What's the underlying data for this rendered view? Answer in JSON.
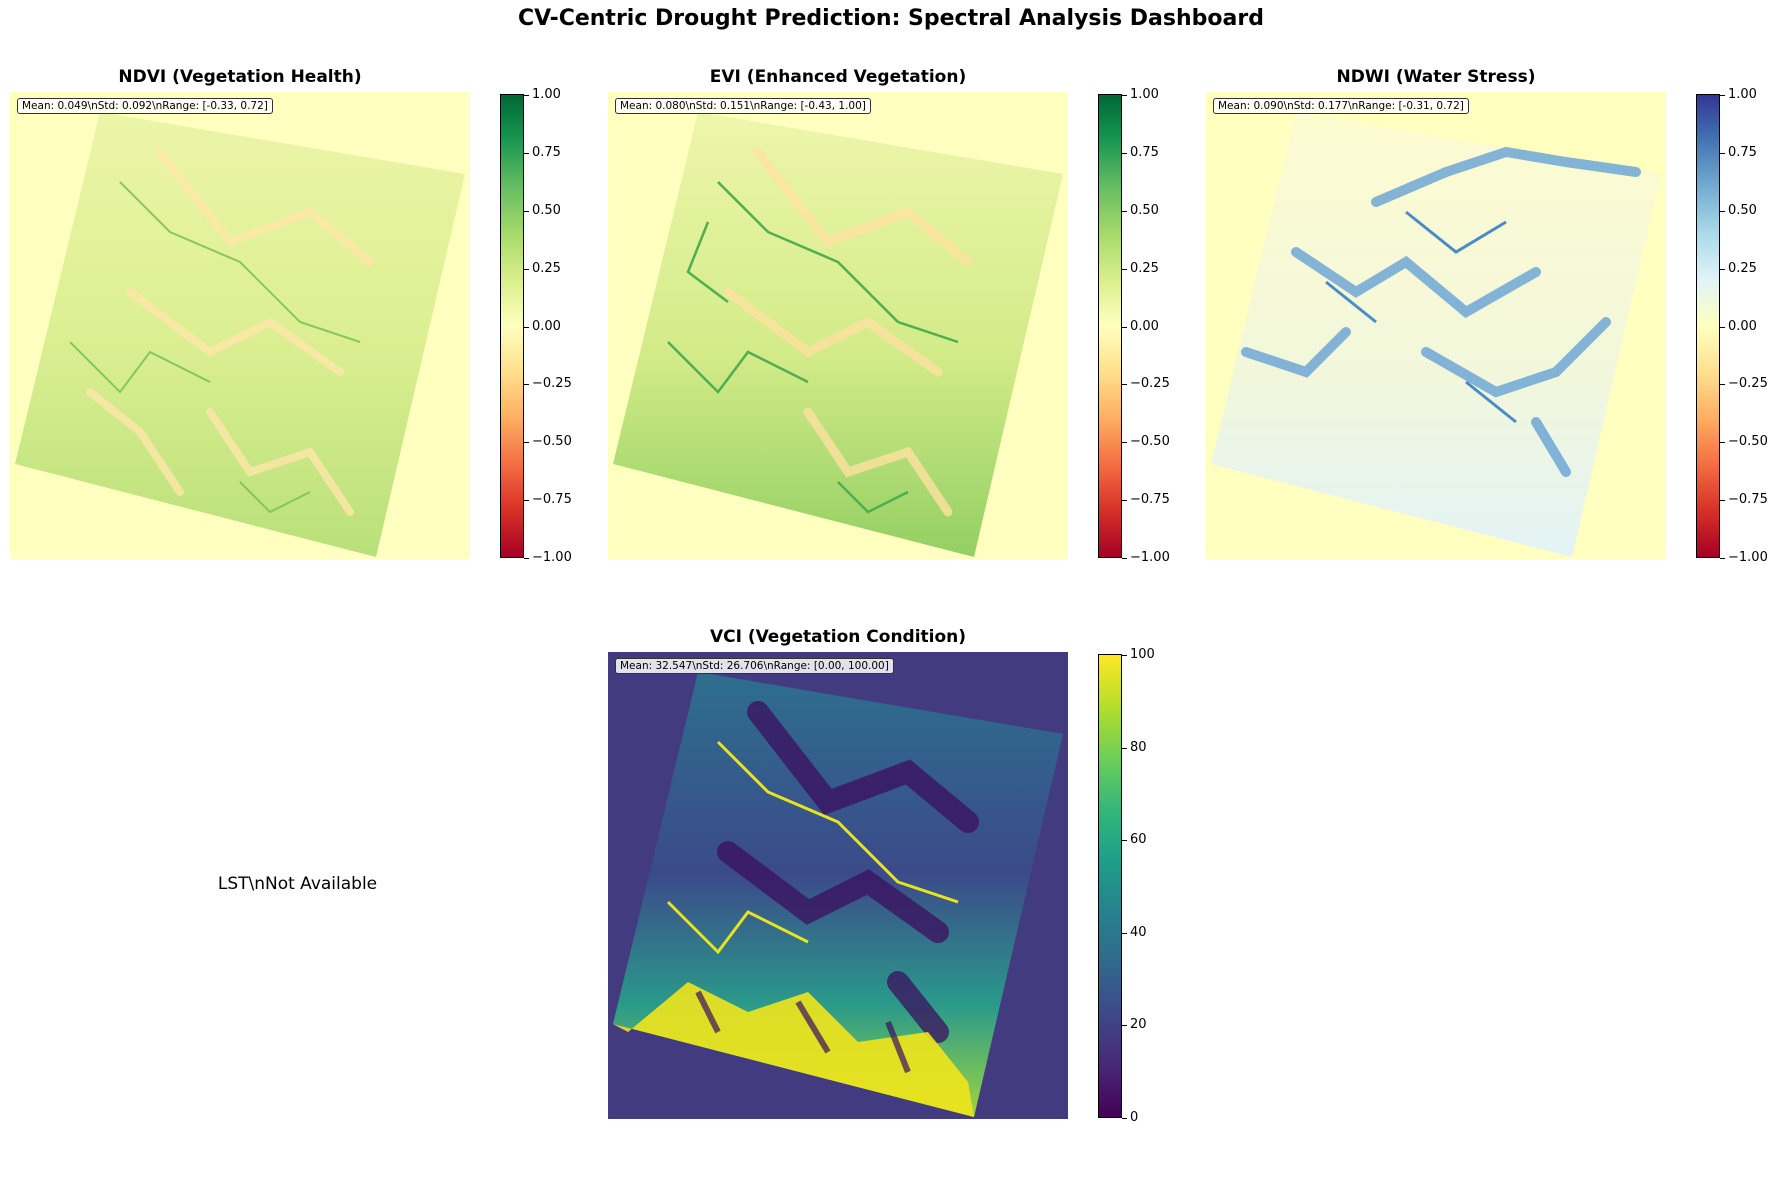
{
  "title": "CV-Centric Drought Prediction: Spectral Analysis Dashboard",
  "colors": {
    "background_nodata": "#ffffc0",
    "vci_nodata": "#433b7f",
    "rdylgn": [
      "#a50026",
      "#d73027",
      "#f46d43",
      "#fdae61",
      "#fee08b",
      "#ffffbf",
      "#d9ef8b",
      "#a6d96a",
      "#66bd63",
      "#1a9850",
      "#006837"
    ],
    "rdylbu": [
      "#a50026",
      "#d73027",
      "#f46d43",
      "#fdae61",
      "#fee090",
      "#ffffbf",
      "#e0f3f8",
      "#abd9e9",
      "#74add1",
      "#4575b4",
      "#313695"
    ],
    "viridis": [
      "#440154",
      "#482878",
      "#3e4989",
      "#31688e",
      "#26828e",
      "#1f9e89",
      "#35b779",
      "#6ece58",
      "#b5de2b",
      "#fde725"
    ]
  },
  "panels": {
    "ndvi": {
      "title": "NDVI (Vegetation Health)",
      "stats": "Mean: 0.049\\nStd: 0.092\\nRange: [-0.33, 0.72]"
    },
    "evi": {
      "title": "EVI (Enhanced Vegetation)",
      "stats": "Mean: 0.080\\nStd: 0.151\\nRange: [-0.43, 1.00]"
    },
    "ndwi": {
      "title": "NDWI (Water Stress)",
      "stats": "Mean: 0.090\\nStd: 0.177\\nRange: [-0.31, 0.72]"
    },
    "lst": {
      "message": "LST\\nNot Available"
    },
    "vci": {
      "title": "VCI (Vegetation Condition)",
      "stats": "Mean: 32.547\\nStd: 26.706\\nRange: [0.00, 100.00]"
    }
  },
  "chart_data": [
    {
      "type": "heatmap",
      "title": "NDVI (Vegetation Health)",
      "colormap": "RdYlGn",
      "vmin": -1.0,
      "vmax": 1.0,
      "colorbar_ticks": [
        "1.00",
        "0.75",
        "0.50",
        "0.25",
        "0.00",
        "−0.25",
        "−0.50",
        "−0.75",
        "−1.00"
      ],
      "mean": 0.049,
      "std": 0.092,
      "range": [
        -0.33,
        0.72
      ]
    },
    {
      "type": "heatmap",
      "title": "EVI (Enhanced Vegetation)",
      "colormap": "RdYlGn",
      "vmin": -1.0,
      "vmax": 1.0,
      "colorbar_ticks": [
        "1.00",
        "0.75",
        "0.50",
        "0.25",
        "0.00",
        "−0.25",
        "−0.50",
        "−0.75",
        "−1.00"
      ],
      "mean": 0.08,
      "std": 0.151,
      "range": [
        -0.43,
        1.0
      ]
    },
    {
      "type": "heatmap",
      "title": "NDWI (Water Stress)",
      "colormap": "RdYlBu",
      "vmin": -1.0,
      "vmax": 1.0,
      "colorbar_ticks": [
        "1.00",
        "0.75",
        "0.50",
        "0.25",
        "0.00",
        "−0.25",
        "−0.50",
        "−0.75",
        "−1.00"
      ],
      "mean": 0.09,
      "std": 0.177,
      "range": [
        -0.31,
        0.72
      ]
    },
    {
      "type": "heatmap",
      "title": "VCI (Vegetation Condition)",
      "colormap": "viridis",
      "vmin": 0,
      "vmax": 100,
      "colorbar_ticks": [
        "100",
        "80",
        "60",
        "40",
        "20",
        "0"
      ],
      "mean": 32.547,
      "std": 26.706,
      "range": [
        0.0,
        100.0
      ]
    }
  ]
}
